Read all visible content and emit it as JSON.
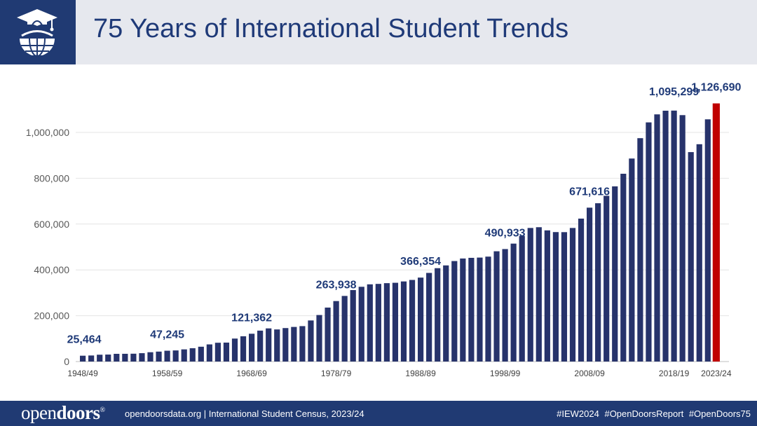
{
  "header": {
    "title": "75 Years of International Student Trends",
    "logo_icon": "graduation-cap-globe-icon"
  },
  "colors": {
    "header_bg": "#e6e8ee",
    "navy": "#203a73",
    "bar": "#27336b",
    "highlight_bar": "#c00000",
    "label": "#1f3a78"
  },
  "chart_data": {
    "type": "bar",
    "title": "",
    "xlabel": "",
    "ylabel": "",
    "ylim": [
      0,
      1200000
    ],
    "yticks": [
      0,
      200000,
      400000,
      600000,
      800000,
      1000000
    ],
    "ytick_labels": [
      "0",
      "200,000",
      "400,000",
      "600,000",
      "800,000",
      "1,000,000"
    ],
    "grid": true,
    "xtick_labels": [
      "1948/49",
      "1958/59",
      "1968/69",
      "1978/79",
      "1988/89",
      "1998/99",
      "2008/09",
      "2018/19",
      "2023/24"
    ],
    "categories": [
      "1948/49",
      "1949/50",
      "1950/51",
      "1951/52",
      "1952/53",
      "1953/54",
      "1954/55",
      "1955/56",
      "1956/57",
      "1957/58",
      "1958/59",
      "1959/60",
      "1960/61",
      "1961/62",
      "1962/63",
      "1963/64",
      "1964/65",
      "1965/66",
      "1966/67",
      "1967/68",
      "1968/69",
      "1969/70",
      "1970/71",
      "1971/72",
      "1972/73",
      "1973/74",
      "1974/75",
      "1975/76",
      "1976/77",
      "1977/78",
      "1978/79",
      "1979/80",
      "1980/81",
      "1981/82",
      "1982/83",
      "1983/84",
      "1984/85",
      "1985/86",
      "1986/87",
      "1987/88",
      "1988/89",
      "1989/90",
      "1990/91",
      "1991/92",
      "1992/93",
      "1993/94",
      "1994/95",
      "1995/96",
      "1996/97",
      "1997/98",
      "1998/99",
      "1999/00",
      "2000/01",
      "2001/02",
      "2002/03",
      "2003/04",
      "2004/05",
      "2005/06",
      "2006/07",
      "2007/08",
      "2008/09",
      "2009/10",
      "2010/11",
      "2011/12",
      "2012/13",
      "2013/14",
      "2014/15",
      "2015/16",
      "2016/17",
      "2017/18",
      "2018/19",
      "2019/20",
      "2020/21",
      "2021/22",
      "2022/23",
      "2023/24"
    ],
    "values": [
      25464,
      26433,
      29813,
      30462,
      33675,
      33833,
      34232,
      36494,
      40666,
      43391,
      47245,
      48486,
      53107,
      58086,
      64705,
      74814,
      82045,
      82709,
      100262,
      110315,
      121362,
      134959,
      144708,
      140126,
      146097,
      151066,
      154580,
      179344,
      203068,
      235509,
      263938,
      286343,
      311882,
      326299,
      336985,
      338894,
      342113,
      343777,
      349609,
      356187,
      366354,
      386851,
      407529,
      419585,
      438618,
      449749,
      452635,
      453787,
      457984,
      481280,
      490933,
      514723,
      547867,
      582996,
      586323,
      572509,
      565039,
      564766,
      582984,
      623805,
      671616,
      690923,
      723277,
      764495,
      819644,
      886052,
      974926,
      1043839,
      1078822,
      1094792,
      1095299,
      1075496,
      914095,
      948519,
      1057188,
      1126690
    ],
    "highlight_index": 75,
    "annotations": [
      {
        "index": 0,
        "label": "25,464"
      },
      {
        "index": 10,
        "label": "47,245"
      },
      {
        "index": 20,
        "label": "121,362"
      },
      {
        "index": 30,
        "label": "263,938"
      },
      {
        "index": 40,
        "label": "366,354"
      },
      {
        "index": 50,
        "label": "490,933"
      },
      {
        "index": 60,
        "label": "671,616"
      },
      {
        "index": 70,
        "label": "1,095,299"
      },
      {
        "index": 75,
        "label": "1,126,690"
      }
    ]
  },
  "footer": {
    "brand_part1": "open",
    "brand_part2": "doors",
    "brand_mark": "®",
    "info": "opendoorsdata.org  |  International Student Census, 2023/24",
    "tags": [
      "#IEW2024",
      "#OpenDoorsReport",
      "#OpenDoors75"
    ]
  }
}
